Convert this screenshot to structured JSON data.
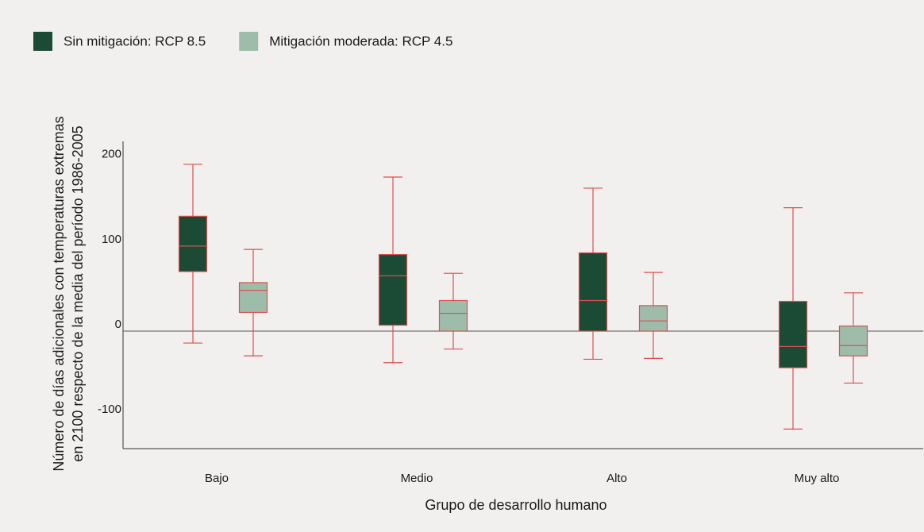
{
  "chart_data": {
    "type": "box",
    "legend": "top-left",
    "ylabel": [
      "Número de días adicionales con temperaturas extremas",
      "en 2100 respecto de la media del período 1986-2005"
    ],
    "xlabel": "Grupo de desarrollo humano",
    "categories": [
      "Bajo",
      "Medio",
      "Alto",
      "Muy alto"
    ],
    "ylim": [
      -138,
      223
    ],
    "yticks": [
      -100,
      0,
      100,
      200
    ],
    "zero_line": true,
    "whisker_color": "#d9504f",
    "series": [
      {
        "name": "Sin mitigación: RCP 8.5",
        "color": "#1b4a35",
        "min": [
          -14,
          -37,
          -33,
          -115
        ],
        "q1": [
          70,
          7,
          0,
          -43
        ],
        "median": [
          100,
          65,
          36,
          -18
        ],
        "q3": [
          135,
          90,
          92,
          35
        ],
        "max": [
          196,
          181,
          168,
          145
        ]
      },
      {
        "name": "Mitigación moderada: RCP 4.5",
        "color": "#9dbdaa",
        "min": [
          -29,
          -21,
          -32,
          -61
        ],
        "q1": [
          22,
          0,
          0,
          -29
        ],
        "median": [
          48,
          21,
          12,
          -17
        ],
        "q3": [
          57,
          36,
          30,
          6
        ],
        "max": [
          96,
          68,
          69,
          45
        ]
      }
    ]
  }
}
